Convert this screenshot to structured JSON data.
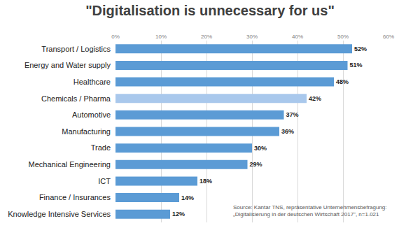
{
  "chart_data": {
    "type": "bar",
    "orientation": "horizontal",
    "title": "\"Digitalisation is unnecessary for us\"",
    "categories": [
      "Transport / Logistics",
      "Energy and Water supply",
      "Healthcare",
      "Chemicals / Pharma",
      "Automotive",
      "Manufacturing",
      "Trade",
      "Mechanical Engineering",
      "ICT",
      "Finance / Insurances",
      "Knowledge Intensive Services"
    ],
    "values": [
      52,
      51,
      48,
      42,
      37,
      36,
      30,
      29,
      18,
      14,
      12
    ],
    "value_labels": [
      "52%",
      "51%",
      "48%",
      "42%",
      "37%",
      "36%",
      "30%",
      "29%",
      "18%",
      "14%",
      "12%"
    ],
    "colors": [
      "#5b9bd5",
      "#5b9bd5",
      "#5b9bd5",
      "#a9c8ec",
      "#5b9bd5",
      "#5b9bd5",
      "#5b9bd5",
      "#5b9bd5",
      "#5b9bd5",
      "#5b9bd5",
      "#5b9bd5"
    ],
    "data_labels": true,
    "xlim": [
      0,
      60
    ],
    "xticks": [
      {
        "value": 0,
        "label": "0%"
      },
      {
        "value": 10,
        "label": "10%"
      },
      {
        "value": 20,
        "label": "20%"
      },
      {
        "value": 30,
        "label": "30%"
      },
      {
        "value": 40,
        "label": "40%"
      },
      {
        "value": 50,
        "label": "50%"
      },
      {
        "value": 60,
        "label": "60%"
      }
    ],
    "grid": true,
    "annotations": [
      [
        "Source: Kantar TNS, repräsentative Unternehmensbefragung:",
        "„Digitalisierung in der deutschen Wirtschaft 2017\", n=1.021"
      ]
    ]
  }
}
